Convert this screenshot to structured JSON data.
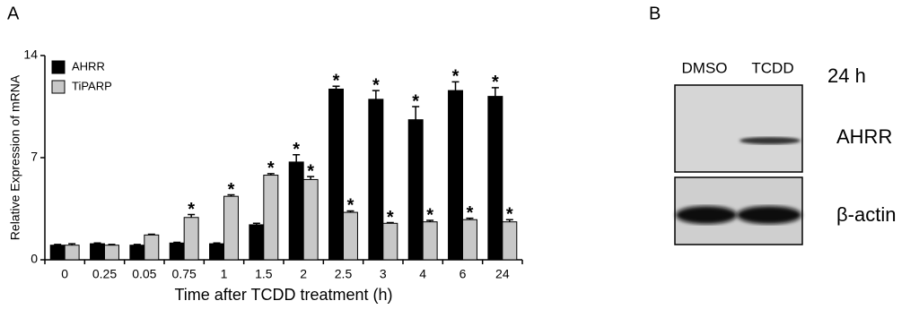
{
  "chart_data": {
    "type": "bar",
    "panel_label": "A",
    "x_label": "Time after TCDD treatment (h)",
    "y_label": "Relative Expression of mRNA",
    "categories": [
      "0",
      "0.25",
      "0.05",
      "0.75",
      "1",
      "1.5",
      "2",
      "2.5",
      "3",
      "4",
      "6",
      "24"
    ],
    "series": [
      {
        "name": "AHRR",
        "color": "#000000",
        "values": [
          1.0,
          1.1,
          1.0,
          1.15,
          1.1,
          2.4,
          6.7,
          11.7,
          11.0,
          9.6,
          11.6,
          11.2
        ],
        "errors": [
          0.05,
          0.05,
          0.05,
          0.05,
          0.05,
          0.1,
          0.5,
          0.2,
          0.6,
          0.9,
          0.6,
          0.6
        ],
        "annotations": [
          null,
          null,
          null,
          null,
          null,
          null,
          "*",
          "*",
          "*",
          "*",
          "*",
          "*"
        ]
      },
      {
        "name": "TiPARP",
        "color": "#c8c8c8",
        "values": [
          1.0,
          1.0,
          1.7,
          2.9,
          4.35,
          5.8,
          5.5,
          3.25,
          2.5,
          2.6,
          2.75,
          2.6
        ],
        "errors": [
          0.1,
          0.05,
          0.05,
          0.2,
          0.1,
          0.1,
          0.2,
          0.1,
          0.05,
          0.1,
          0.1,
          0.15
        ],
        "annotations": [
          null,
          null,
          null,
          "*",
          "*",
          "*",
          "*",
          "*",
          "*",
          "*",
          "*",
          "*"
        ]
      }
    ],
    "ylim": [
      0,
      14
    ],
    "yticks": [
      0,
      7,
      14
    ],
    "legend": "upper-left"
  },
  "blot": {
    "panel_label": "B",
    "lanes": [
      "DMSO",
      "TCDD"
    ],
    "time": "24 h",
    "rows": [
      "AHRR",
      "β-actin"
    ]
  }
}
